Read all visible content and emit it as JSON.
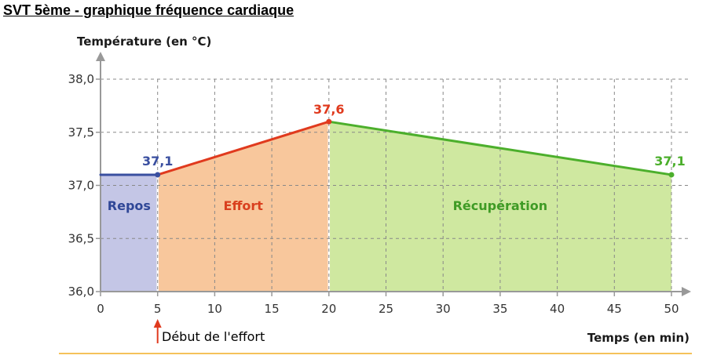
{
  "page": {
    "heading": "SVT 5ème - graphique fréquence cardiaque"
  },
  "chart_data": {
    "type": "line",
    "ylabel": "Température (en °C)",
    "xlabel": "Temps (en min)",
    "xlim": [
      0,
      50
    ],
    "ylim": [
      36.0,
      38.0
    ],
    "x_ticks": [
      0,
      5,
      10,
      15,
      20,
      25,
      30,
      35,
      40,
      45,
      50
    ],
    "x_tick_labels": [
      "0",
      "5",
      "10",
      "15",
      "20",
      "25",
      "30",
      "35",
      "40",
      "45",
      "50"
    ],
    "y_ticks": [
      36.0,
      36.5,
      37.0,
      37.5,
      38.0
    ],
    "y_tick_labels": [
      "36,0",
      "36,5",
      "37,0",
      "37,5",
      "38,0"
    ],
    "grid": true,
    "segments": [
      {
        "name": "Repos",
        "x": [
          0,
          5
        ],
        "y": [
          37.1,
          37.1
        ],
        "line_color": "#3a4fa0",
        "fill_color": "#c4c6e6"
      },
      {
        "name": "Effort",
        "x": [
          5,
          20
        ],
        "y": [
          37.1,
          37.6
        ],
        "line_color": "#e03a1e",
        "fill_color": "#f8c79c"
      },
      {
        "name": "Récupération",
        "x": [
          20,
          50
        ],
        "y": [
          37.6,
          37.1
        ],
        "line_color": "#4caf2c",
        "fill_color": "#cfe8a0"
      }
    ],
    "data_labels": [
      {
        "x": 5,
        "y": 37.1,
        "text": "37,1",
        "color": "#3a4fa0"
      },
      {
        "x": 20,
        "y": 37.6,
        "text": "37,6",
        "color": "#e03a1e"
      },
      {
        "x": 50,
        "y": 37.1,
        "text": "37,1",
        "color": "#4caf2c"
      }
    ],
    "zone_labels": [
      {
        "text": "Repos",
        "color": "#2f4797"
      },
      {
        "text": "Effort",
        "color": "#d9401f"
      },
      {
        "text": "Récupération",
        "color": "#3f9b25"
      }
    ],
    "annotation": {
      "x": 5,
      "text": "Début de l'effort",
      "color": "#e03a1e"
    }
  }
}
